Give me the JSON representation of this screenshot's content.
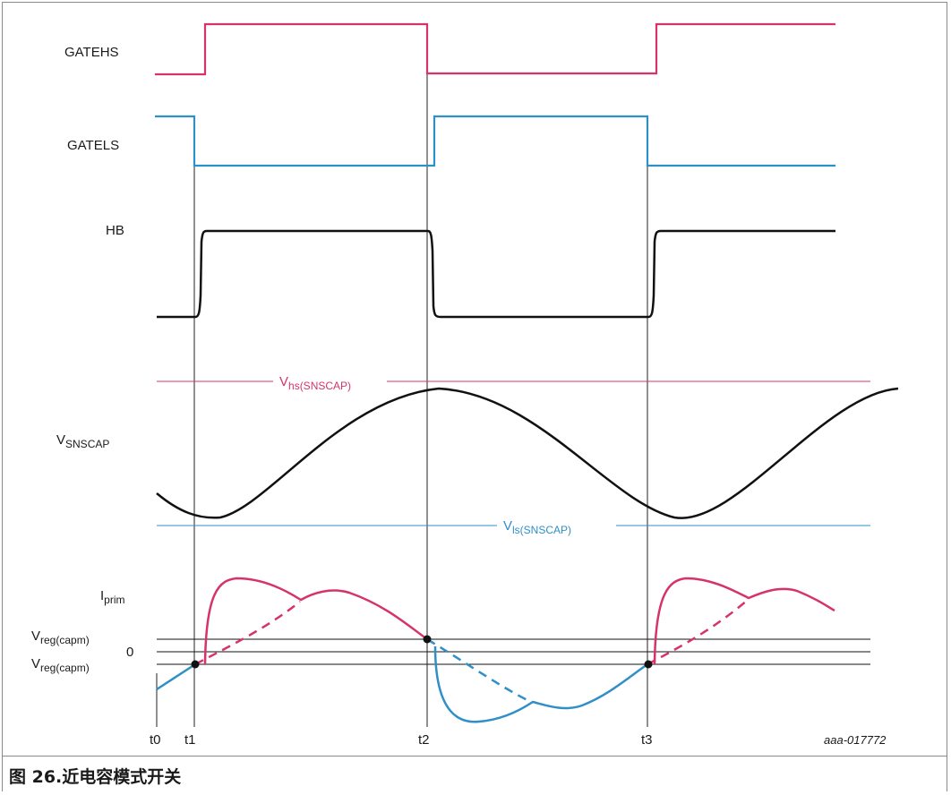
{
  "signals": {
    "gatehs": "GATEHS",
    "gatels": "GATELS",
    "hb": "HB",
    "vsnscap": {
      "main": "V",
      "sub": "SNSCAP"
    },
    "iprim": {
      "main": "I",
      "sub": "prim"
    },
    "vreg_top": {
      "main": "V",
      "sub": "reg(capm)"
    },
    "zero": "0",
    "vreg_bottom": {
      "main": "V",
      "sub": "reg(capm)"
    }
  },
  "thresholds": {
    "vhs": {
      "main": "V",
      "sub": "hs(SNSCAP)"
    },
    "vls": {
      "main": "V",
      "sub": "ls(SNSCAP)"
    }
  },
  "times": [
    "t0",
    "t1",
    "t2",
    "t3"
  ],
  "figure_code": "aaa-017772",
  "caption": "图 26.近电容模式开关",
  "colors": {
    "gatehs": "#d6336c",
    "gatels": "#2f8fc7",
    "hb": "#111111",
    "vhs_line": "#d6336c",
    "vls_line": "#2f8fc7",
    "iprim_pos": "#d6336c",
    "iprim_neg": "#2f8fc7"
  }
}
